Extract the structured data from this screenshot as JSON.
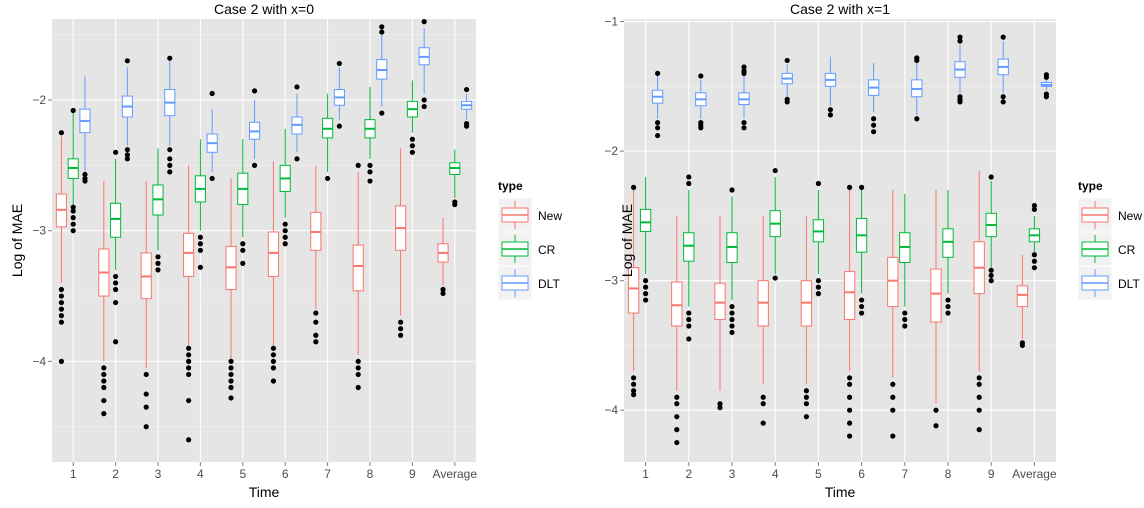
{
  "colors": {
    "panel_bg": "#e5e5e5",
    "grid_major": "#ffffff",
    "grid_minor": "#f2f2f2",
    "outlier": "#000000",
    "New": "#f8766d",
    "CR": "#00ba38",
    "DLT": "#619cff"
  },
  "legend": {
    "title": "type",
    "entries": [
      "New",
      "CR",
      "DLT"
    ]
  },
  "chart_data": [
    {
      "type": "box",
      "title": "Case 2 with x=0",
      "xlabel": "Time",
      "ylabel": "Log of MAE",
      "categories": [
        "1",
        "2",
        "3",
        "4",
        "5",
        "6",
        "7",
        "8",
        "9",
        "Average"
      ],
      "yticks": [
        -4,
        -3,
        -2
      ],
      "ylim": [
        -4.77,
        -1.38
      ],
      "legend_position": "right",
      "grid": true,
      "series": [
        {
          "name": "New",
          "boxes": [
            {
              "min": -3.4,
              "q1": -2.97,
              "median": -2.84,
              "q3": -2.72,
              "max": -2.28,
              "outliers": [
                -3.45,
                -3.5,
                -3.55,
                -3.6,
                -3.65,
                -3.7,
                -4.0,
                -2.25
              ]
            },
            {
              "min": -4.0,
              "q1": -3.5,
              "median": -3.32,
              "q3": -3.14,
              "max": -2.62,
              "outliers": [
                -4.05,
                -4.1,
                -4.15,
                -4.2,
                -4.3,
                -4.4
              ]
            },
            {
              "min": -4.05,
              "q1": -3.52,
              "median": -3.35,
              "q3": -3.17,
              "max": -2.62,
              "outliers": [
                -4.1,
                -4.25,
                -4.35,
                -4.5
              ]
            },
            {
              "min": -3.88,
              "q1": -3.35,
              "median": -3.17,
              "q3": -3.02,
              "max": -2.5,
              "outliers": [
                -3.9,
                -3.95,
                -4.0,
                -4.05,
                -4.1,
                -4.3,
                -4.6
              ]
            },
            {
              "min": -3.98,
              "q1": -3.45,
              "median": -3.28,
              "q3": -3.12,
              "max": -2.6,
              "outliers": [
                -4.0,
                -4.05,
                -4.1,
                -4.15,
                -4.2,
                -4.28
              ]
            },
            {
              "min": -3.88,
              "q1": -3.35,
              "median": -3.17,
              "q3": -3.01,
              "max": -2.47,
              "outliers": [
                -3.9,
                -3.95,
                -4.0,
                -4.05,
                -4.15
              ]
            },
            {
              "min": -3.6,
              "q1": -3.15,
              "median": -3.01,
              "q3": -2.86,
              "max": -2.5,
              "outliers": [
                -3.63,
                -3.7,
                -3.8,
                -3.85
              ]
            },
            {
              "min": -3.95,
              "q1": -3.46,
              "median": -3.27,
              "q3": -3.11,
              "max": -2.55,
              "outliers": [
                -4.0,
                -4.05,
                -4.1,
                -4.2,
                -2.5
              ]
            },
            {
              "min": -3.65,
              "q1": -3.15,
              "median": -2.98,
              "q3": -2.81,
              "max": -2.37,
              "outliers": [
                -3.7,
                -3.75,
                -3.8
              ]
            },
            {
              "min": -3.42,
              "q1": -3.24,
              "median": -3.17,
              "q3": -3.1,
              "max": -2.9,
              "outliers": [
                -3.45,
                -3.48
              ]
            }
          ]
        },
        {
          "name": "CR",
          "boxes": [
            {
              "min": -2.8,
              "q1": -2.6,
              "median": -2.52,
              "q3": -2.45,
              "max": -2.1,
              "outliers": [
                -2.82,
                -2.85,
                -2.9,
                -2.95,
                -3.0,
                -2.08
              ]
            },
            {
              "min": -3.3,
              "q1": -3.05,
              "median": -2.91,
              "q3": -2.79,
              "max": -2.45,
              "outliers": [
                -3.35,
                -3.4,
                -3.45,
                -3.55,
                -3.85,
                -2.4
              ]
            },
            {
              "min": -3.15,
              "q1": -2.88,
              "median": -2.76,
              "q3": -2.65,
              "max": -2.37,
              "outliers": [
                -3.2,
                -3.25,
                -3.3
              ]
            },
            {
              "min": -3.0,
              "q1": -2.78,
              "median": -2.68,
              "q3": -2.58,
              "max": -2.3,
              "outliers": [
                -3.05,
                -3.1,
                -3.15,
                -3.28
              ]
            },
            {
              "min": -3.05,
              "q1": -2.8,
              "median": -2.68,
              "q3": -2.56,
              "max": -2.3,
              "outliers": [
                -3.1,
                -3.15,
                -3.25
              ]
            },
            {
              "min": -2.9,
              "q1": -2.7,
              "median": -2.6,
              "q3": -2.5,
              "max": -2.22,
              "outliers": [
                -2.95,
                -3.0,
                -3.05,
                -3.1
              ]
            },
            {
              "min": -2.55,
              "q1": -2.29,
              "median": -2.22,
              "q3": -2.14,
              "max": -1.95,
              "outliers": [
                -2.6
              ]
            },
            {
              "min": -2.45,
              "q1": -2.29,
              "median": -2.22,
              "q3": -2.15,
              "max": -1.9,
              "outliers": [
                -2.5,
                -2.55,
                -2.62
              ]
            },
            {
              "min": -2.25,
              "q1": -2.13,
              "median": -2.07,
              "q3": -2.01,
              "max": -1.85,
              "outliers": [
                -2.3,
                -2.35,
                -2.4
              ]
            },
            {
              "min": -2.75,
              "q1": -2.57,
              "median": -2.52,
              "q3": -2.48,
              "max": -2.38,
              "outliers": [
                -2.78,
                -2.8
              ]
            }
          ]
        },
        {
          "name": "DLT",
          "boxes": [
            {
              "min": -2.55,
              "q1": -2.25,
              "median": -2.16,
              "q3": -2.07,
              "max": -1.82,
              "outliers": [
                -2.57,
                -2.6,
                -2.62
              ]
            },
            {
              "min": -2.35,
              "q1": -2.13,
              "median": -2.05,
              "q3": -1.97,
              "max": -1.75,
              "outliers": [
                -2.38,
                -2.42,
                -2.45,
                -1.7
              ]
            },
            {
              "min": -2.35,
              "q1": -2.12,
              "median": -2.02,
              "q3": -1.92,
              "max": -1.7,
              "outliers": [
                -2.38,
                -2.45,
                -2.5,
                -2.55,
                -1.68
              ]
            },
            {
              "min": -2.55,
              "q1": -2.4,
              "median": -2.33,
              "q3": -2.26,
              "max": -2.07,
              "outliers": [
                -2.6,
                -1.95
              ]
            },
            {
              "min": -2.45,
              "q1": -2.3,
              "median": -2.24,
              "q3": -2.17,
              "max": -2.0,
              "outliers": [
                -2.5,
                -1.93
              ]
            },
            {
              "min": -2.4,
              "q1": -2.26,
              "median": -2.19,
              "q3": -2.13,
              "max": -1.95,
              "outliers": [
                -2.45,
                -1.9
              ]
            },
            {
              "min": -2.15,
              "q1": -2.04,
              "median": -1.98,
              "q3": -1.92,
              "max": -1.75,
              "outliers": [
                -2.2,
                -1.72
              ]
            },
            {
              "min": -2.05,
              "q1": -1.84,
              "median": -1.77,
              "q3": -1.69,
              "max": -1.5,
              "outliers": [
                -2.1,
                -1.48,
                -1.44
              ]
            },
            {
              "min": -1.95,
              "q1": -1.73,
              "median": -1.67,
              "q3": -1.6,
              "max": -1.45,
              "outliers": [
                -2.0,
                -2.05,
                -1.4
              ]
            },
            {
              "min": -2.15,
              "q1": -2.07,
              "median": -2.04,
              "q3": -2.01,
              "max": -1.95,
              "outliers": [
                -2.18,
                -2.2,
                -1.92
              ]
            }
          ]
        }
      ]
    },
    {
      "type": "box",
      "title": "Case 2 with x=1",
      "xlabel": "Time",
      "ylabel": "Log of MAE",
      "categories": [
        "1",
        "2",
        "3",
        "4",
        "5",
        "6",
        "7",
        "8",
        "9",
        "Average"
      ],
      "yticks": [
        -4,
        -3,
        -2,
        -1
      ],
      "ylim": [
        -4.4,
        -0.98
      ],
      "legend_position": "right",
      "grid": true,
      "series": [
        {
          "name": "New",
          "boxes": [
            {
              "min": -3.7,
              "q1": -3.25,
              "median": -3.06,
              "q3": -2.9,
              "max": -2.3,
              "outliers": [
                -3.75,
                -3.8,
                -3.85,
                -3.88,
                -2.28
              ]
            },
            {
              "min": -3.85,
              "q1": -3.35,
              "median": -3.19,
              "q3": -3.01,
              "max": -2.5,
              "outliers": [
                -3.9,
                -3.95,
                -4.05,
                -4.15,
                -4.25
              ]
            },
            {
              "min": -3.85,
              "q1": -3.3,
              "median": -3.17,
              "q3": -3.02,
              "max": -2.5,
              "outliers": [
                -3.95,
                -3.98
              ]
            },
            {
              "min": -3.8,
              "q1": -3.35,
              "median": -3.17,
              "q3": -3.0,
              "max": -2.5,
              "outliers": [
                -3.9,
                -3.95,
                -4.1
              ]
            },
            {
              "min": -3.8,
              "q1": -3.35,
              "median": -3.17,
              "q3": -3.0,
              "max": -2.5,
              "outliers": [
                -3.85,
                -3.9,
                -3.95,
                -4.05
              ]
            },
            {
              "min": -3.7,
              "q1": -3.3,
              "median": -3.09,
              "q3": -2.93,
              "max": -2.3,
              "outliers": [
                -3.75,
                -3.8,
                -3.9,
                -4.0,
                -4.1,
                -4.2,
                -2.28
              ]
            },
            {
              "min": -3.75,
              "q1": -3.2,
              "median": -3.0,
              "q3": -2.82,
              "max": -2.3,
              "outliers": [
                -3.8,
                -3.9,
                -4.0,
                -4.2
              ]
            },
            {
              "min": -3.95,
              "q1": -3.32,
              "median": -3.1,
              "q3": -2.91,
              "max": -2.3,
              "outliers": [
                -4.0,
                -4.12
              ]
            },
            {
              "min": -3.7,
              "q1": -3.1,
              "median": -2.9,
              "q3": -2.7,
              "max": -2.15,
              "outliers": [
                -3.75,
                -3.8,
                -3.9,
                -4.0,
                -4.15
              ]
            },
            {
              "min": -3.45,
              "q1": -3.2,
              "median": -3.11,
              "q3": -3.04,
              "max": -2.8,
              "outliers": [
                -3.48,
                -3.5
              ]
            }
          ]
        },
        {
          "name": "CR",
          "boxes": [
            {
              "min": -2.95,
              "q1": -2.62,
              "median": -2.55,
              "q3": -2.45,
              "max": -2.2,
              "outliers": [
                -3.0,
                -3.05,
                -3.1,
                -3.15
              ]
            },
            {
              "min": -3.2,
              "q1": -2.85,
              "median": -2.73,
              "q3": -2.63,
              "max": -2.3,
              "outliers": [
                -3.25,
                -3.3,
                -3.35,
                -3.45,
                -2.25,
                -2.2
              ]
            },
            {
              "min": -3.15,
              "q1": -2.86,
              "median": -2.74,
              "q3": -2.63,
              "max": -2.35,
              "outliers": [
                -3.2,
                -3.25,
                -3.3,
                -3.35,
                -3.4,
                -2.3
              ]
            },
            {
              "min": -2.95,
              "q1": -2.66,
              "median": -2.56,
              "q3": -2.46,
              "max": -2.2,
              "outliers": [
                -2.98,
                -2.15
              ]
            },
            {
              "min": -2.95,
              "q1": -2.7,
              "median": -2.62,
              "q3": -2.53,
              "max": -2.3,
              "outliers": [
                -3.0,
                -3.05,
                -3.1,
                -2.25
              ]
            },
            {
              "min": -3.1,
              "q1": -2.78,
              "median": -2.65,
              "q3": -2.52,
              "max": -2.3,
              "outliers": [
                -3.15,
                -3.2,
                -3.25,
                -2.28
              ]
            },
            {
              "min": -3.2,
              "q1": -2.86,
              "median": -2.74,
              "q3": -2.63,
              "max": -2.33,
              "outliers": [
                -3.25,
                -3.3,
                -3.35
              ]
            },
            {
              "min": -3.1,
              "q1": -2.82,
              "median": -2.7,
              "q3": -2.6,
              "max": -2.3,
              "outliers": [
                -3.15,
                -3.2,
                -3.25
              ]
            },
            {
              "min": -2.9,
              "q1": -2.66,
              "median": -2.57,
              "q3": -2.48,
              "max": -2.23,
              "outliers": [
                -2.92,
                -2.96,
                -3.0,
                -2.2
              ]
            },
            {
              "min": -2.78,
              "q1": -2.7,
              "median": -2.65,
              "q3": -2.6,
              "max": -2.5,
              "outliers": [
                -2.8,
                -2.85,
                -2.9,
                -2.45,
                -2.42
              ]
            }
          ]
        },
        {
          "name": "DLT",
          "boxes": [
            {
              "min": -1.75,
              "q1": -1.63,
              "median": -1.58,
              "q3": -1.53,
              "max": -1.42,
              "outliers": [
                -1.78,
                -1.82,
                -1.88,
                -1.4
              ]
            },
            {
              "min": -1.75,
              "q1": -1.65,
              "median": -1.6,
              "q3": -1.55,
              "max": -1.45,
              "outliers": [
                -1.78,
                -1.8,
                -1.82,
                -1.42
              ]
            },
            {
              "min": -1.75,
              "q1": -1.64,
              "median": -1.6,
              "q3": -1.55,
              "max": -1.42,
              "outliers": [
                -1.78,
                -1.82,
                -1.4,
                -1.38,
                -1.35
              ]
            },
            {
              "min": -1.58,
              "q1": -1.48,
              "median": -1.44,
              "q3": -1.4,
              "max": -1.33,
              "outliers": [
                -1.6,
                -1.62,
                -1.3
              ]
            },
            {
              "min": -1.65,
              "q1": -1.5,
              "median": -1.45,
              "q3": -1.4,
              "max": -1.27,
              "outliers": [
                -1.68,
                -1.72
              ]
            },
            {
              "min": -1.7,
              "q1": -1.57,
              "median": -1.51,
              "q3": -1.45,
              "max": -1.32,
              "outliers": [
                -1.75,
                -1.8,
                -1.85
              ]
            },
            {
              "min": -1.72,
              "q1": -1.58,
              "median": -1.52,
              "q3": -1.45,
              "max": -1.32,
              "outliers": [
                -1.75,
                -1.3,
                -1.28
              ]
            },
            {
              "min": -1.55,
              "q1": -1.43,
              "median": -1.37,
              "q3": -1.31,
              "max": -1.18,
              "outliers": [
                -1.58,
                -1.6,
                -1.62,
                -1.15,
                -1.12
              ]
            },
            {
              "min": -1.55,
              "q1": -1.41,
              "median": -1.35,
              "q3": -1.29,
              "max": -1.15,
              "outliers": [
                -1.58,
                -1.62,
                -1.12
              ]
            },
            {
              "min": -1.53,
              "q1": -1.5,
              "median": -1.49,
              "q3": -1.47,
              "max": -1.45,
              "outliers": [
                -1.56,
                -1.58,
                -1.43,
                -1.41
              ]
            }
          ]
        }
      ]
    }
  ]
}
